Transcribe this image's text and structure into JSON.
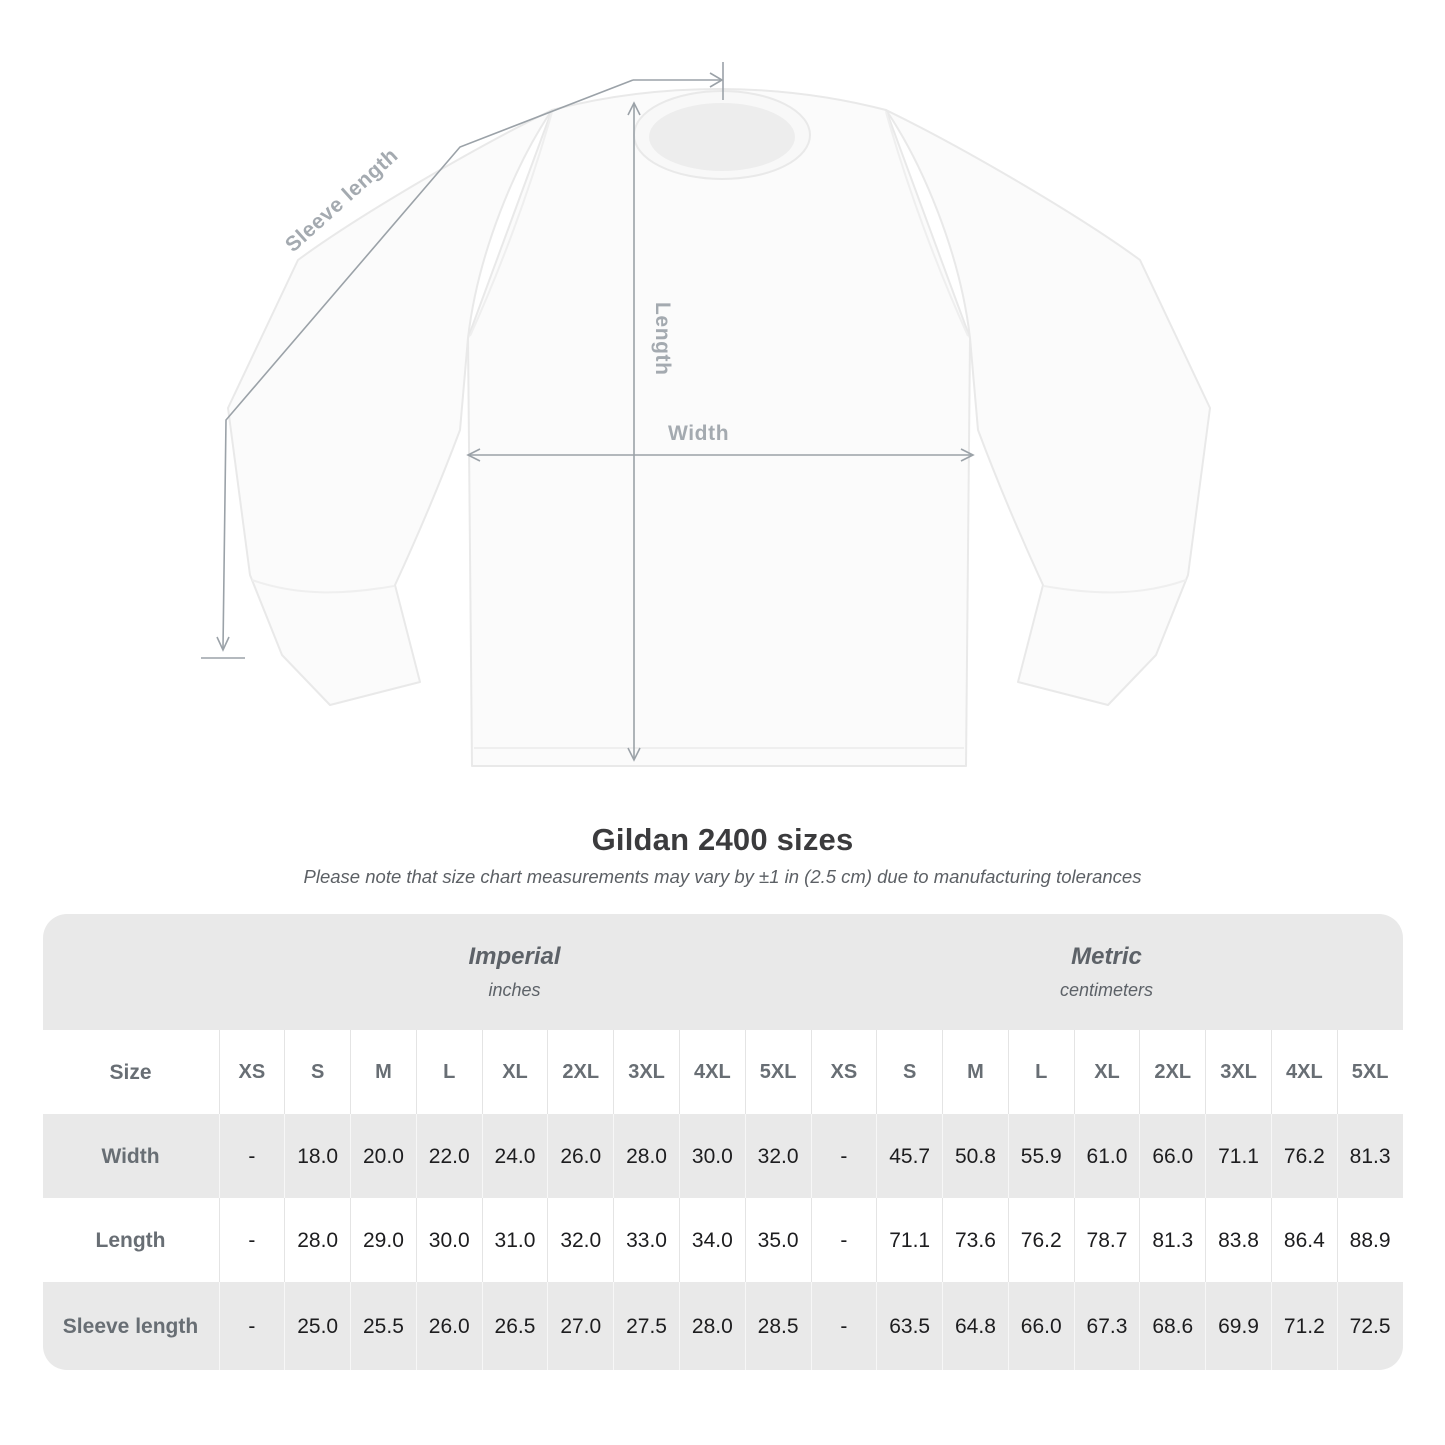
{
  "diagram": {
    "labels": {
      "sleeve_length": "Sleeve length",
      "length": "Length",
      "width": "Width"
    }
  },
  "header": {
    "title": "Gildan 2400 sizes",
    "subtitle": "Please note that size chart measurements may vary by ±1 in (2.5 cm) due to manufacturing tolerances"
  },
  "table": {
    "size_label": "Size",
    "groups": [
      {
        "name": "Imperial",
        "unit": "inches",
        "sizes": [
          "XS",
          "S",
          "M",
          "L",
          "XL",
          "2XL",
          "3XL",
          "4XL",
          "5XL"
        ]
      },
      {
        "name": "Metric",
        "unit": "centimeters",
        "sizes": [
          "XS",
          "S",
          "M",
          "L",
          "XL",
          "2XL",
          "3XL",
          "4XL",
          "5XL"
        ]
      }
    ],
    "rows": [
      {
        "label": "Width",
        "imperial": [
          "-",
          "18.0",
          "20.0",
          "22.0",
          "24.0",
          "26.0",
          "28.0",
          "30.0",
          "32.0"
        ],
        "metric": [
          "-",
          "45.7",
          "50.8",
          "55.9",
          "61.0",
          "66.0",
          "71.1",
          "76.2",
          "81.3"
        ]
      },
      {
        "label": "Length",
        "imperial": [
          "-",
          "28.0",
          "29.0",
          "30.0",
          "31.0",
          "32.0",
          "33.0",
          "34.0",
          "35.0"
        ],
        "metric": [
          "-",
          "71.1",
          "73.6",
          "76.2",
          "78.7",
          "81.3",
          "83.8",
          "86.4",
          "88.9"
        ]
      },
      {
        "label": "Sleeve length",
        "imperial": [
          "-",
          "25.0",
          "25.5",
          "26.0",
          "26.5",
          "27.0",
          "27.5",
          "28.0",
          "28.5"
        ],
        "metric": [
          "-",
          "63.5",
          "64.8",
          "66.0",
          "67.3",
          "68.6",
          "69.9",
          "71.2",
          "72.5"
        ]
      }
    ]
  },
  "chart_data": {
    "type": "table",
    "title": "Gildan 2400 sizes",
    "note": "Please note that size chart measurements may vary by ±1 in (2.5 cm) due to manufacturing tolerances",
    "column_groups": [
      "Imperial (inches)",
      "Metric (centimeters)"
    ],
    "columns": [
      "XS",
      "S",
      "M",
      "L",
      "XL",
      "2XL",
      "3XL",
      "4XL",
      "5XL"
    ],
    "series": [
      {
        "name": "Width (inches)",
        "values": [
          null,
          18.0,
          20.0,
          22.0,
          24.0,
          26.0,
          28.0,
          30.0,
          32.0
        ]
      },
      {
        "name": "Length (inches)",
        "values": [
          null,
          28.0,
          29.0,
          30.0,
          31.0,
          32.0,
          33.0,
          34.0,
          35.0
        ]
      },
      {
        "name": "Sleeve length (inches)",
        "values": [
          null,
          25.0,
          25.5,
          26.0,
          26.5,
          27.0,
          27.5,
          28.0,
          28.5
        ]
      },
      {
        "name": "Width (cm)",
        "values": [
          null,
          45.7,
          50.8,
          55.9,
          61.0,
          66.0,
          71.1,
          76.2,
          81.3
        ]
      },
      {
        "name": "Length (cm)",
        "values": [
          null,
          71.1,
          73.6,
          76.2,
          78.7,
          81.3,
          83.8,
          86.4,
          88.9
        ]
      },
      {
        "name": "Sleeve length (cm)",
        "values": [
          null,
          63.5,
          64.8,
          66.0,
          67.3,
          68.6,
          69.9,
          71.2,
          72.5
        ]
      }
    ]
  },
  "colors": {
    "table_background": "#e9e9e9",
    "annotation_gray": "#9ba2a8",
    "title_text": "#3b3b3d"
  }
}
